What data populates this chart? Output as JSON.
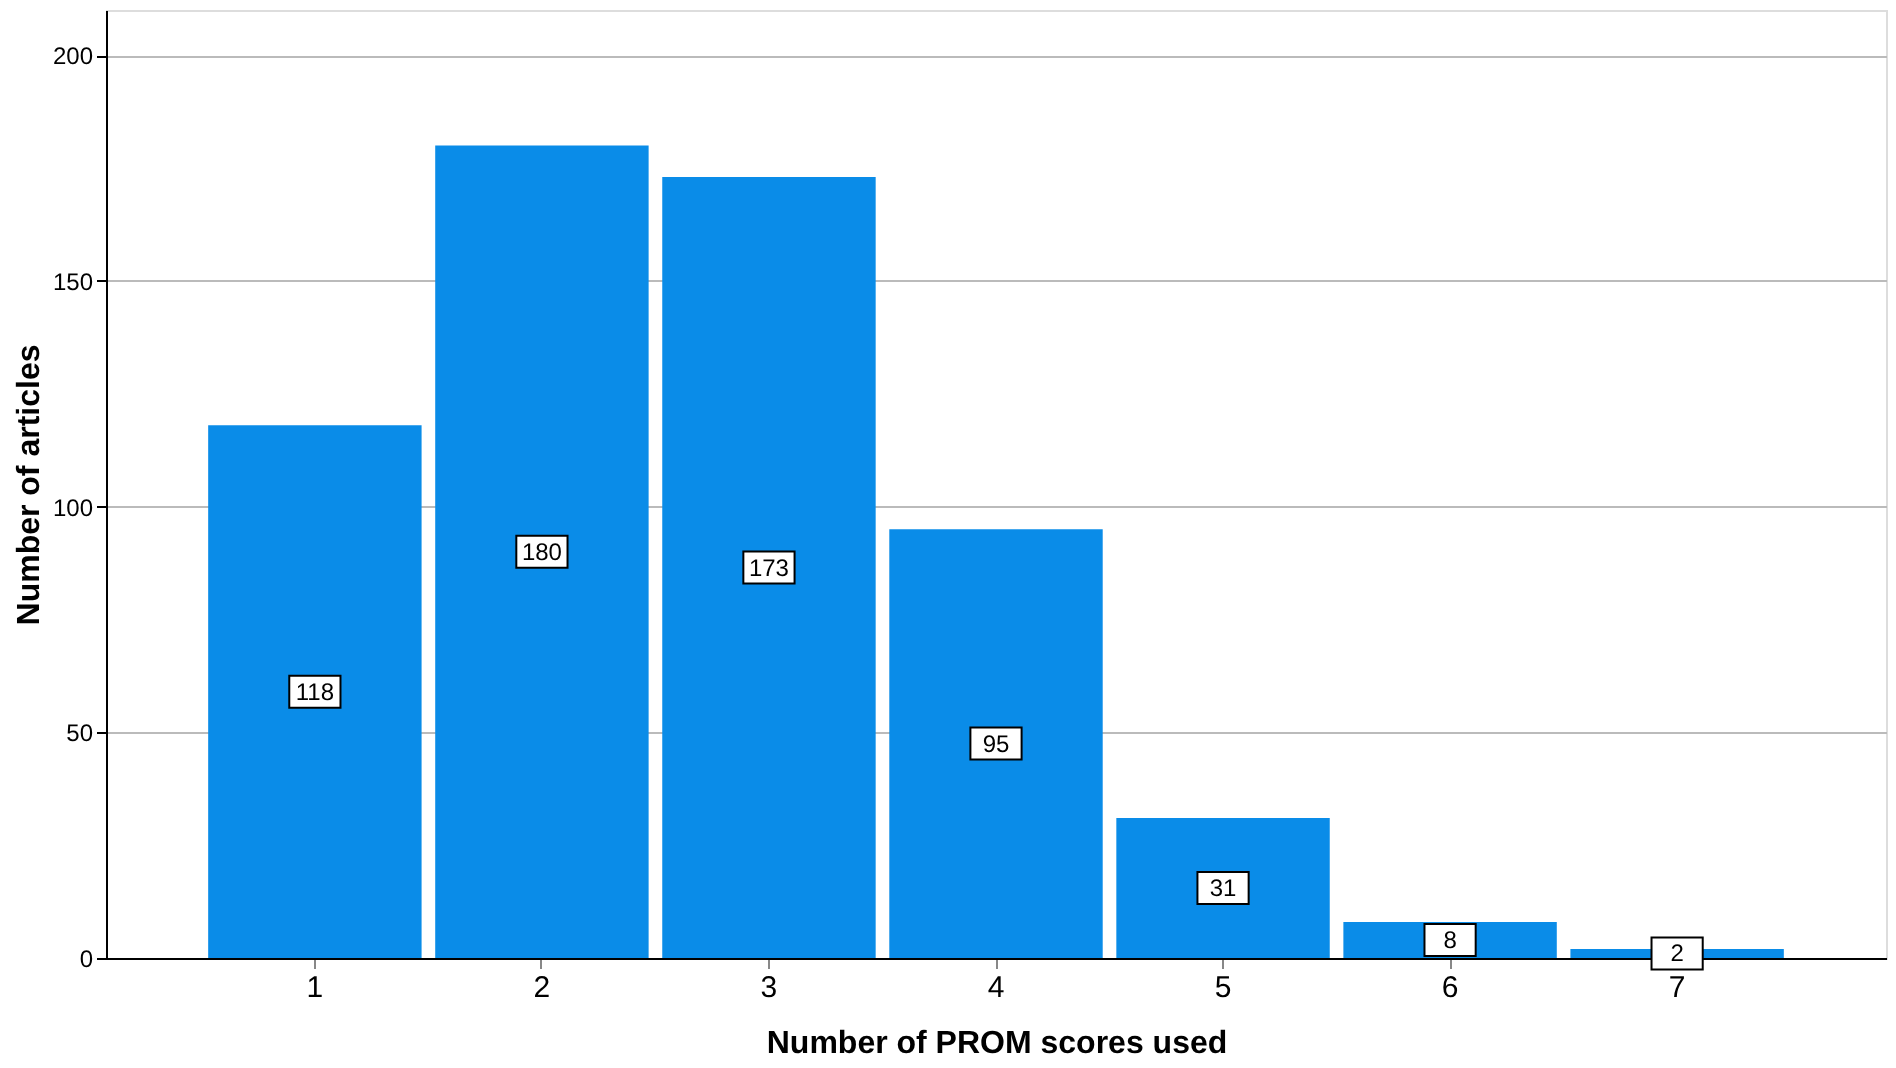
{
  "chart_data": {
    "type": "bar",
    "xlabel": "Number of PROM scores used",
    "ylabel": "Number of articles",
    "categories": [
      "1",
      "2",
      "3",
      "4",
      "5",
      "6",
      "7"
    ],
    "values": [
      118,
      180,
      173,
      95,
      31,
      8,
      2
    ],
    "color": "#0a8ce8",
    "ylim": [
      0,
      210
    ],
    "yticks": [
      0,
      50,
      100,
      150,
      200
    ],
    "grid": "y",
    "data_labels": true
  }
}
